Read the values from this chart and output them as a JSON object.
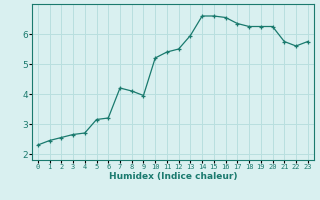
{
  "x": [
    0,
    1,
    2,
    3,
    4,
    5,
    6,
    7,
    8,
    9,
    10,
    11,
    12,
    13,
    14,
    15,
    16,
    17,
    18,
    19,
    20,
    21,
    22,
    23
  ],
  "y": [
    2.3,
    2.45,
    2.55,
    2.65,
    2.7,
    3.15,
    3.2,
    4.2,
    4.1,
    3.95,
    5.2,
    5.4,
    5.5,
    5.95,
    6.6,
    6.6,
    6.55,
    6.35,
    6.25,
    6.25,
    6.25,
    5.75,
    5.6,
    5.75
  ],
  "xlabel": "Humidex (Indice chaleur)",
  "line_color": "#1a7a6e",
  "marker": "+",
  "background_color": "#d9f0f0",
  "grid_color": "#b8dfdf",
  "tick_label_color": "#1a7a6e",
  "axis_color": "#1a7a6e",
  "xlabel_color": "#1a7a6e",
  "xlim": [
    -0.5,
    23.5
  ],
  "ylim": [
    1.8,
    7.0
  ],
  "yticks": [
    2,
    3,
    4,
    5,
    6
  ],
  "xticks": [
    0,
    1,
    2,
    3,
    4,
    5,
    6,
    7,
    8,
    9,
    10,
    11,
    12,
    13,
    14,
    15,
    16,
    17,
    18,
    19,
    20,
    21,
    22,
    23
  ]
}
